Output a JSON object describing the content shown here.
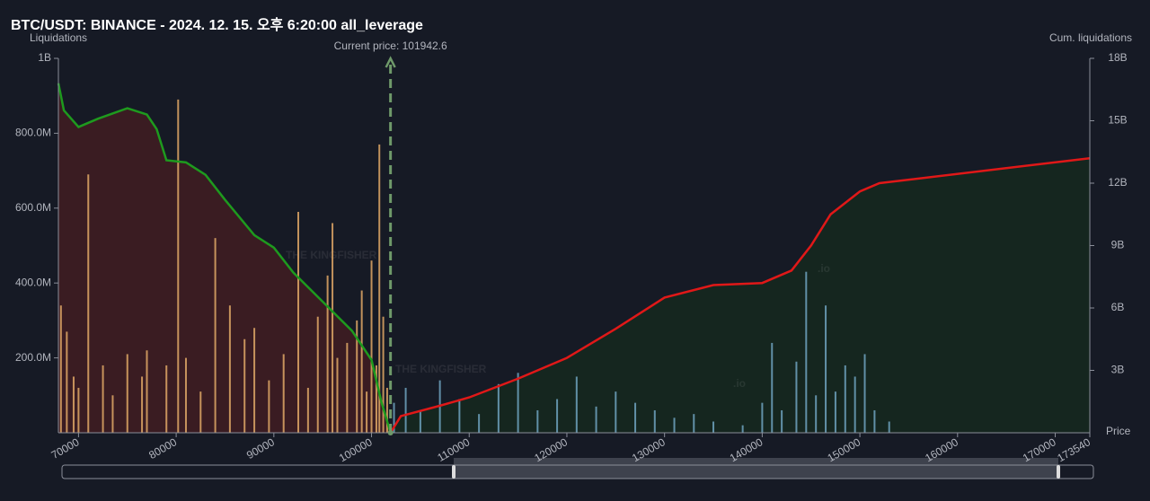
{
  "chart_data": {
    "type": "liquidation-map",
    "title": "BTC/USDT: BINANCE - 2024. 12. 15. 오후 6:20:00 all_leverage",
    "y_label": "Liquidations",
    "y2_label": "Cum. liquidations",
    "x_label": "Price",
    "current_price": {
      "text": "Current price: 101942.6",
      "value": 101942.6,
      "color": "#6f9a6a"
    },
    "watermark": {
      "text": "THE KINGFISHER",
      "suffix": ".io"
    },
    "xlim": [
      67940,
      173540
    ],
    "xticks": [
      70000,
      80000,
      90000,
      100000,
      110000,
      120000,
      130000,
      140000,
      150000,
      160000,
      170000,
      173540
    ],
    "ylim": [
      0,
      1000000000
    ],
    "yticks": [
      {
        "value": 200000000,
        "label": "200.0M"
      },
      {
        "value": 400000000,
        "label": "400.0M"
      },
      {
        "value": 600000000,
        "label": "600.0M"
      },
      {
        "value": 800000000,
        "label": "800.0M"
      },
      {
        "value": 1000000000,
        "label": "1B"
      }
    ],
    "y2lim": [
      0,
      18000000000
    ],
    "y2ticks": [
      {
        "value": 3000000000,
        "label": "3B"
      },
      {
        "value": 6000000000,
        "label": "6B"
      },
      {
        "value": 9000000000,
        "label": "9B"
      },
      {
        "value": 12000000000,
        "label": "12B"
      },
      {
        "value": 15000000000,
        "label": "15B"
      },
      {
        "value": 18000000000,
        "label": "18B"
      }
    ],
    "bars": [
      {
        "color": "#e0a866",
        "x": [
          68200,
          68800,
          69500,
          70000,
          71000,
          72500,
          73500,
          75000,
          76500,
          77000,
          79000,
          80200,
          81000,
          82500,
          84000,
          85500,
          87000,
          88000,
          89500,
          91000,
          92500,
          93500,
          94500,
          95500,
          96000,
          96500,
          97500,
          98500,
          99000,
          99500,
          100000,
          100500,
          100800,
          101200,
          101600
        ],
        "values": [
          340000000,
          270000000,
          150000000,
          120000000,
          690000000,
          180000000,
          100000000,
          210000000,
          150000000,
          220000000,
          180000000,
          890000000,
          200000000,
          110000000,
          520000000,
          340000000,
          250000000,
          280000000,
          140000000,
          210000000,
          590000000,
          120000000,
          310000000,
          420000000,
          560000000,
          200000000,
          240000000,
          300000000,
          380000000,
          110000000,
          460000000,
          180000000,
          770000000,
          310000000,
          120000000
        ]
      },
      {
        "color": "#6fa3c0",
        "x": [
          102300,
          103500,
          105000,
          107000,
          109000,
          111000,
          113000,
          115000,
          117000,
          119000,
          121000,
          123000,
          125000,
          127000,
          129000,
          131000,
          133000,
          135000,
          138000,
          140000,
          141000,
          142000,
          143500,
          144500,
          145500,
          146500,
          147500,
          148500,
          149500,
          150500,
          151500,
          153000
        ],
        "values": [
          80000000,
          120000000,
          60000000,
          140000000,
          90000000,
          50000000,
          130000000,
          160000000,
          60000000,
          90000000,
          150000000,
          70000000,
          110000000,
          80000000,
          60000000,
          40000000,
          50000000,
          30000000,
          20000000,
          80000000,
          240000000,
          60000000,
          190000000,
          430000000,
          100000000,
          340000000,
          110000000,
          180000000,
          150000000,
          210000000,
          60000000,
          30000000
        ]
      }
    ],
    "cumulative": [
      {
        "color": "#1e9a1e",
        "fill": "#3a1c22",
        "x": [
          67940,
          68500,
          70000,
          72000,
          75000,
          77000,
          78000,
          79000,
          81000,
          83000,
          85000,
          88000,
          90000,
          92000,
          95000,
          98000,
          100000,
          101000,
          101942.6
        ],
        "values": [
          16800000000,
          15500000000,
          14700000000,
          15100000000,
          15600000000,
          15300000000,
          14600000000,
          13100000000,
          13000000000,
          12400000000,
          11200000000,
          9500000000,
          8900000000,
          7700000000,
          6300000000,
          4900000000,
          3500000000,
          1500000000,
          0
        ]
      },
      {
        "color": "#e01818",
        "fill": "#15261f",
        "x": [
          101942.6,
          103000,
          107000,
          110000,
          115000,
          120000,
          125000,
          130000,
          135000,
          140000,
          143000,
          145000,
          147000,
          150000,
          152000,
          173540
        ],
        "values": [
          0,
          800000000,
          1300000000,
          1700000000,
          2600000000,
          3600000000,
          5000000000,
          6500000000,
          7100000000,
          7200000000,
          7800000000,
          9000000000,
          10500000000,
          11600000000,
          12000000000,
          13200000000
        ]
      }
    ]
  }
}
